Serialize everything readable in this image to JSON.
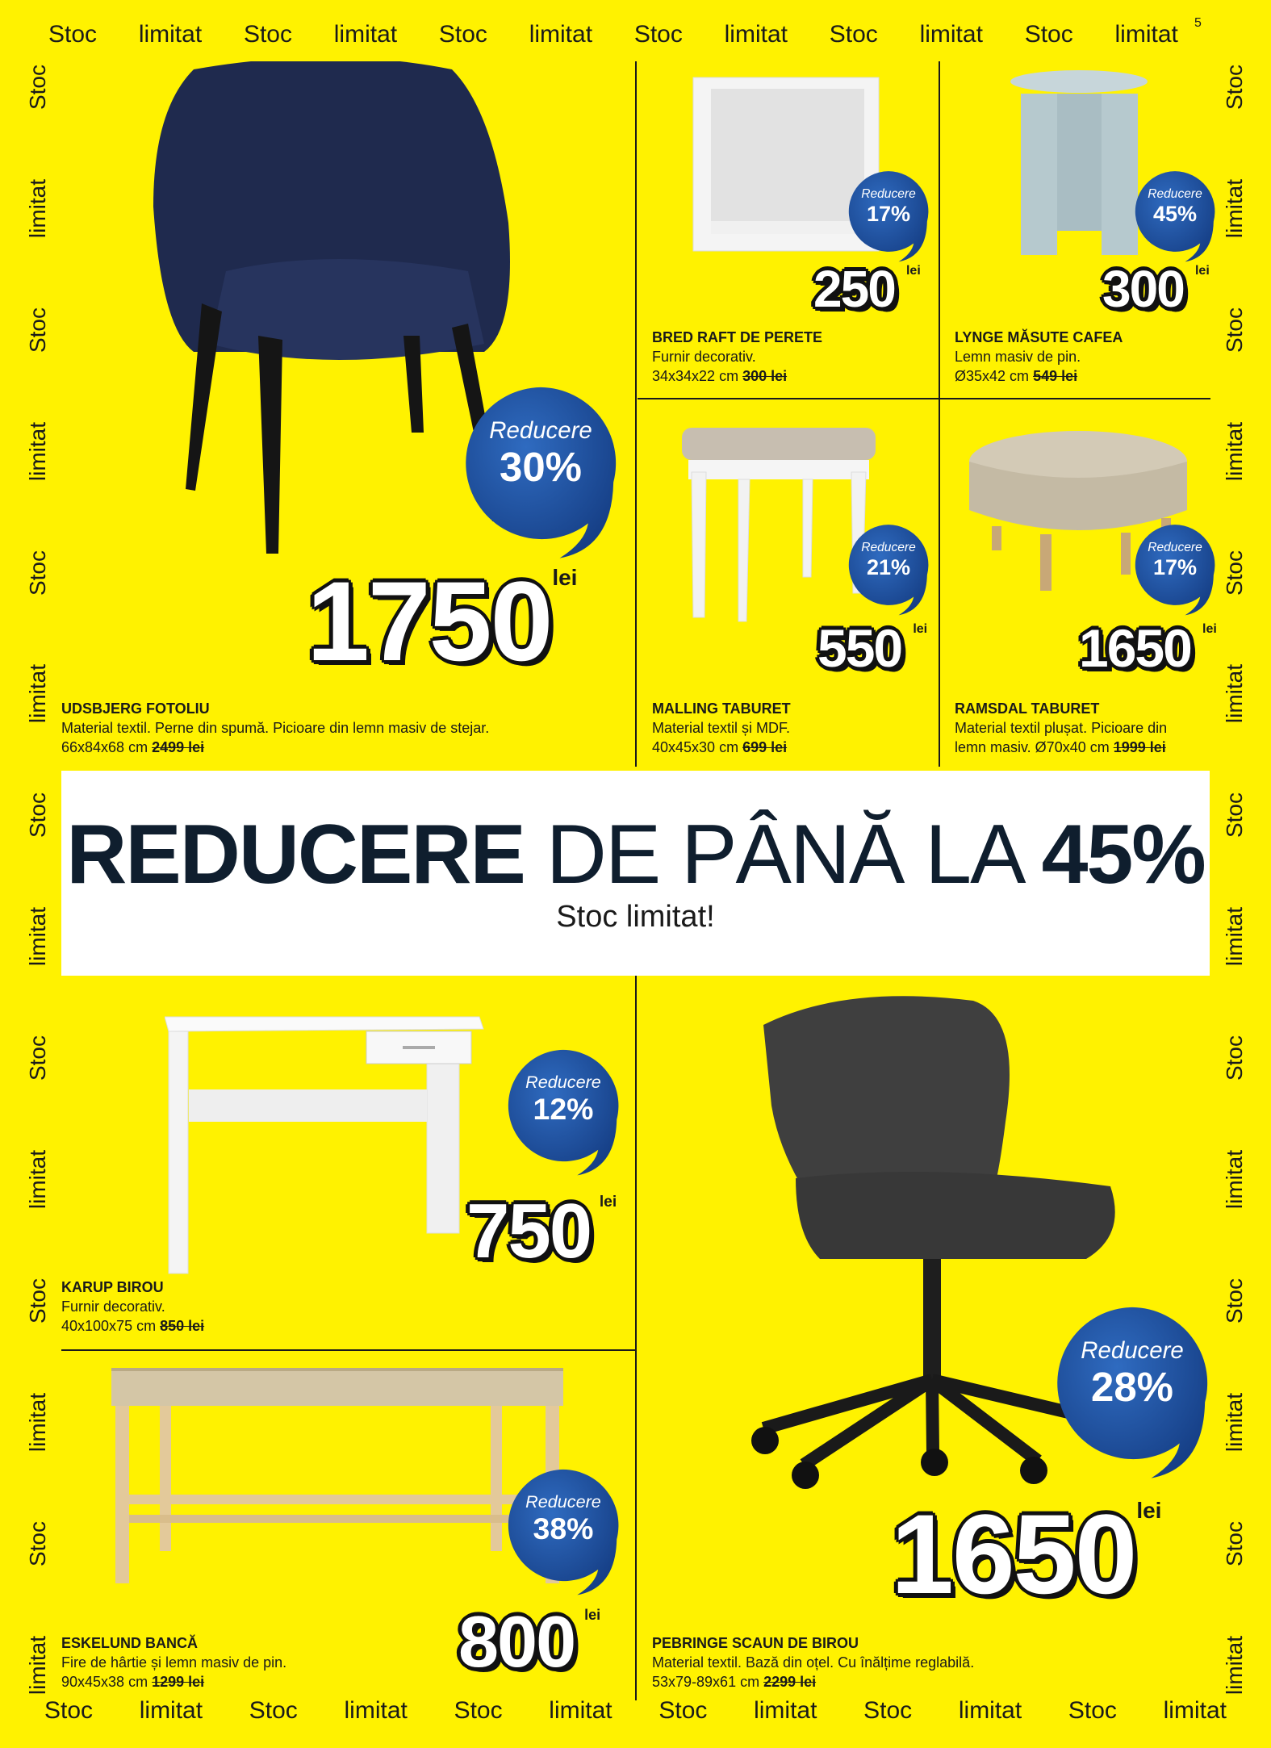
{
  "page_number": "5",
  "strip": {
    "stoc": "Stoc",
    "limitat": "limitat"
  },
  "colors": {
    "background": "#fff200",
    "badge_blue": "#1d4f9e",
    "banner": "#ffffff"
  },
  "banner": {
    "bold": "REDUCERE",
    "middle": " DE PÂNĂ LA ",
    "percent": "45%",
    "subtitle": "Stoc limitat!"
  },
  "badge_label": "Reducere",
  "currency": "lei",
  "products": [
    {
      "name": "UDSBJERG FOTOLIU",
      "desc": "Material textil. Perne din spumă. Picioare din lemn masiv de stejar.",
      "dims": "66x84x68 cm",
      "old_price": "2499 lei",
      "price": "1750",
      "discount": "30%",
      "icon": "armchair-icon"
    },
    {
      "name": "BRED RAFT DE PERETE",
      "desc": "Furnir decorativ.",
      "dims": "34x34x22 cm",
      "old_price": "300 lei",
      "price": "250",
      "discount": "17%",
      "icon": "wall-shelf-icon"
    },
    {
      "name": "LYNGE MĂSUTE CAFEA",
      "desc": "Lemn masiv de pin.",
      "dims": "Ø35x42 cm",
      "old_price": "549 lei",
      "price": "300",
      "discount": "45%",
      "icon": "coffee-table-icon"
    },
    {
      "name": "MALLING TABURET",
      "desc": "Material textil și MDF.",
      "dims": "40x45x30 cm",
      "old_price": "699 lei",
      "price": "550",
      "discount": "21%",
      "icon": "stool-icon"
    },
    {
      "name": "RAMSDAL TABURET",
      "desc": "Material textil plușat. Picioare din",
      "dims": "lemn masiv. Ø70x40 cm",
      "old_price": "1999 lei",
      "price": "1650",
      "discount": "17%",
      "icon": "pouf-icon"
    },
    {
      "name": "KARUP BIROU",
      "desc": "Furnir decorativ.",
      "dims": "40x100x75 cm ",
      "old_price": "850 lei",
      "price": "750",
      "discount": "12%",
      "icon": "desk-icon"
    },
    {
      "name": "ESKELUND BANCĂ",
      "desc": "Fire de hârtie și lemn masiv de pin.",
      "dims": "90x45x38 cm",
      "old_price": "1299 lei",
      "price": "800",
      "discount": "38%",
      "icon": "bench-icon"
    },
    {
      "name": "PEBRINGE SCAUN DE BIROU",
      "desc": "Material textil. Bază din oțel. Cu înălțime reglabilă.",
      "dims": "53x79-89x61 cm",
      "old_price": "2299 lei",
      "price": "1650",
      "discount": "28%",
      "icon": "office-chair-icon"
    }
  ]
}
